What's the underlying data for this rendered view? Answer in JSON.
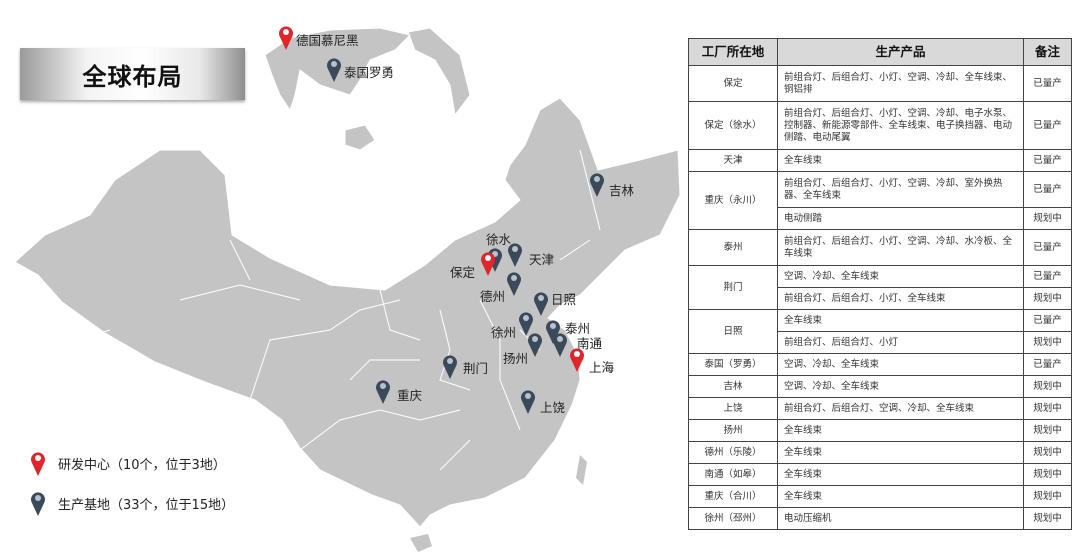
{
  "title": "全球布局",
  "colors": {
    "rd_center": "#e0262b",
    "production_base": "#3b4a5a",
    "map_fill": "#c4c4c4"
  },
  "markers": [
    {
      "label": "德国慕尼黑",
      "type": "rd"
    },
    {
      "label": "泰国罗勇",
      "type": "production"
    },
    {
      "label": "吉林",
      "type": "production"
    },
    {
      "label": "徐水",
      "type": "production"
    },
    {
      "label": "天津",
      "type": "production"
    },
    {
      "label": "保定",
      "type": "rd"
    },
    {
      "label": "德州",
      "type": "production"
    },
    {
      "label": "日照",
      "type": "production"
    },
    {
      "label": "徐州",
      "type": "production"
    },
    {
      "label": "泰州",
      "type": "production"
    },
    {
      "label": "南通",
      "type": "production"
    },
    {
      "label": "扬州",
      "type": "production"
    },
    {
      "label": "上海",
      "type": "rd"
    },
    {
      "label": "荆门",
      "type": "production"
    },
    {
      "label": "重庆",
      "type": "production"
    },
    {
      "label": "上饶",
      "type": "production"
    }
  ],
  "legend": [
    {
      "label": "研发中心（10个，位于3地）",
      "type": "rd"
    },
    {
      "label": "生产基地（33个，位于15地）",
      "type": "production"
    }
  ],
  "table": {
    "headers": [
      "工厂所在地",
      "生产产品",
      "备注"
    ],
    "groups": [
      {
        "location": "保定",
        "rows": [
          {
            "products": "前组合灯、后组合灯、小灯、空调、冷却、全车线束、铜铝排",
            "status": "已量产"
          }
        ]
      },
      {
        "location": "保定（徐水）",
        "rows": [
          {
            "products": "前组合灯、后组合灯、小灯、空调、冷却、电子水泵、控制器、新能源零部件、全车线束、电子换挡器、电动侧踏、电动尾翼",
            "status": "已量产"
          }
        ]
      },
      {
        "location": "天津",
        "rows": [
          {
            "products": "全车线束",
            "status": "已量产"
          }
        ]
      },
      {
        "location": "重庆（永川）",
        "rows": [
          {
            "products": "前组合灯、后组合灯、小灯、空调、冷却、室外换热器、全车线束",
            "status": "已量产"
          },
          {
            "products": "电动侧踏",
            "status": "规划中"
          }
        ]
      },
      {
        "location": "泰州",
        "rows": [
          {
            "products": "前组合灯、后组合灯、小灯、空调、冷却、水冷板、全车线束",
            "status": "已量产"
          }
        ]
      },
      {
        "location": "荆门",
        "rows": [
          {
            "products": "空调、冷却、全车线束",
            "status": "已量产"
          },
          {
            "products": "前组合灯、后组合灯、小灯、全车线束",
            "status": "规划中"
          }
        ]
      },
      {
        "location": "日照",
        "rows": [
          {
            "products": "全车线束",
            "status": "已量产"
          },
          {
            "products": "前组合灯、后组合灯、小灯",
            "status": "规划中"
          }
        ]
      },
      {
        "location": "泰国（罗勇）",
        "rows": [
          {
            "products": "空调、冷却、全车线束",
            "status": "已量产"
          }
        ]
      },
      {
        "location": "吉林",
        "rows": [
          {
            "products": "空调、冷却、全车线束",
            "status": "规划中"
          }
        ]
      },
      {
        "location": "上饶",
        "rows": [
          {
            "products": "前组合灯、后组合灯、空调、冷却、全车线束",
            "status": "规划中"
          }
        ]
      },
      {
        "location": "扬州",
        "rows": [
          {
            "products": "全车线束",
            "status": "规划中"
          }
        ]
      },
      {
        "location": "德州（乐陵）",
        "rows": [
          {
            "products": "全车线束",
            "status": "规划中"
          }
        ]
      },
      {
        "location": "南通（如皋）",
        "rows": [
          {
            "products": "全车线束",
            "status": "规划中"
          }
        ]
      },
      {
        "location": "重庆（合川）",
        "rows": [
          {
            "products": "全车线束",
            "status": "规划中"
          }
        ]
      },
      {
        "location": "徐州（邳州）",
        "rows": [
          {
            "products": "电动压缩机",
            "status": "规划中"
          }
        ]
      }
    ]
  }
}
